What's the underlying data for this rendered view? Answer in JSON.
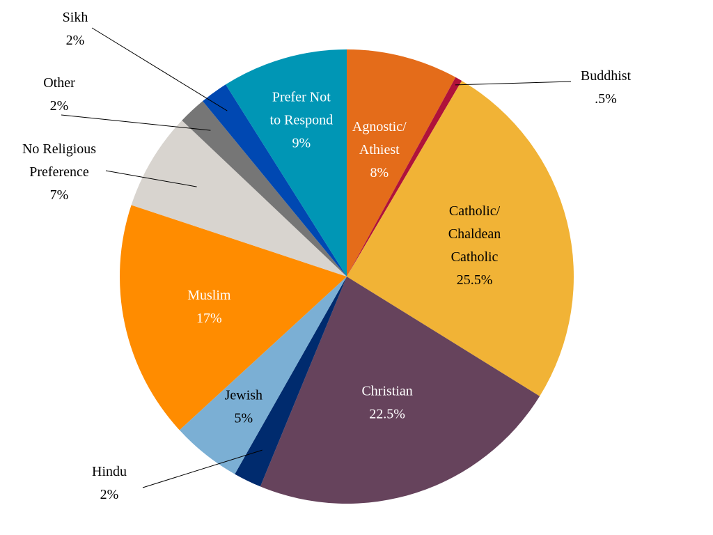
{
  "chart_data": {
    "type": "pie",
    "title": "",
    "start_angle_deg": 0,
    "direction": "clockwise",
    "slices": [
      {
        "lines": [
          "Agnostic/",
          "Athiest"
        ],
        "pct_label": "8%",
        "value": 8,
        "color": "#E46C1A",
        "label_color": "#FFFFFF",
        "label_mode": "inside"
      },
      {
        "lines": [
          "Buddhist"
        ],
        "pct_label": ".5%",
        "value": 0.5,
        "color": "#B0123A",
        "label_color": "#000000",
        "label_mode": "outside"
      },
      {
        "lines": [
          "Catholic/",
          "Chaldean",
          "Catholic"
        ],
        "pct_label": "25.5%",
        "value": 25.5,
        "color": "#F1B336",
        "label_color": "#000000",
        "label_mode": "inside"
      },
      {
        "lines": [
          "Christian"
        ],
        "pct_label": "22.5%",
        "value": 22.5,
        "color": "#66435C",
        "label_color": "#FFFFFF",
        "label_mode": "inside"
      },
      {
        "lines": [
          "Hindu"
        ],
        "pct_label": "2%",
        "value": 2,
        "color": "#002B6E",
        "label_color": "#000000",
        "label_mode": "outside"
      },
      {
        "lines": [
          "Jewish"
        ],
        "pct_label": "5%",
        "value": 5,
        "color": "#7BAFD4",
        "label_color": "#000000",
        "label_mode": "inside"
      },
      {
        "lines": [
          "Muslim"
        ],
        "pct_label": "17%",
        "value": 17,
        "color": "#FF8C00",
        "label_color": "#FFFFFF",
        "label_mode": "inside"
      },
      {
        "lines": [
          "No Religious",
          "Preference"
        ],
        "pct_label": "7%",
        "value": 7,
        "color": "#D8D4CF",
        "label_color": "#000000",
        "label_mode": "outside"
      },
      {
        "lines": [
          "Other"
        ],
        "pct_label": "2%",
        "value": 2,
        "color": "#767676",
        "label_color": "#000000",
        "label_mode": "outside"
      },
      {
        "lines": [
          "Sikh"
        ],
        "pct_label": "2%",
        "value": 2,
        "color": "#0048B2",
        "label_color": "#000000",
        "label_mode": "outside"
      },
      {
        "lines": [
          "Prefer Not",
          "to Respond"
        ],
        "pct_label": "9%",
        "value": 9,
        "color": "#0096B5",
        "label_color": "#FFFFFF",
        "label_mode": "inside"
      }
    ]
  }
}
